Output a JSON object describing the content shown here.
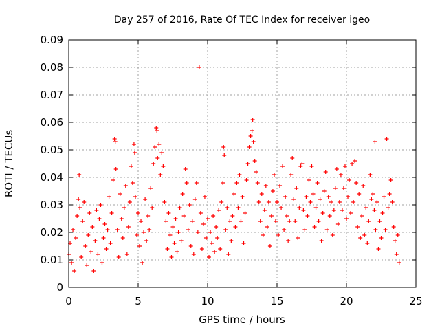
{
  "chart_data": {
    "type": "scatter",
    "title": "Day 257 of 2016, Rate Of TEC Index for receiver igeo",
    "xlabel": "GPS time / hours",
    "ylabel": "ROTI / TECUs",
    "xlim": [
      0,
      25
    ],
    "ylim": [
      0,
      0.09
    ],
    "xticks": [
      0,
      5,
      10,
      15,
      20,
      25
    ],
    "xtick_labels": [
      "0",
      "5",
      "10",
      "15",
      "20",
      "25"
    ],
    "yticks": [
      0,
      0.01,
      0.02,
      0.03,
      0.04,
      0.05,
      0.06,
      0.07,
      0.08,
      0.09
    ],
    "ytick_labels": [
      "0",
      "0.01",
      "0.02",
      "0.03",
      "0.04",
      "0.05",
      "0.06",
      "0.07",
      "0.08",
      "0.09"
    ],
    "grid": true,
    "marker": "+",
    "color": "#ff0000",
    "series": [
      {
        "name": "ROTI",
        "points": [
          [
            0.0,
            0.012
          ],
          [
            0.1,
            0.016
          ],
          [
            0.2,
            0.009
          ],
          [
            0.3,
            0.021
          ],
          [
            0.4,
            0.006
          ],
          [
            0.5,
            0.018
          ],
          [
            0.6,
            0.026
          ],
          [
            0.7,
            0.032
          ],
          [
            0.75,
            0.041
          ],
          [
            0.8,
            0.029
          ],
          [
            0.9,
            0.011
          ],
          [
            1.0,
            0.024
          ],
          [
            1.1,
            0.031
          ],
          [
            1.2,
            0.015
          ],
          [
            1.3,
            0.008
          ],
          [
            1.4,
            0.019
          ],
          [
            1.5,
            0.027
          ],
          [
            1.6,
            0.013
          ],
          [
            1.7,
            0.022
          ],
          [
            1.8,
            0.006
          ],
          [
            1.9,
            0.017
          ],
          [
            2.0,
            0.028
          ],
          [
            2.1,
            0.012
          ],
          [
            2.2,
            0.025
          ],
          [
            2.3,
            0.03
          ],
          [
            2.4,
            0.009
          ],
          [
            2.5,
            0.018
          ],
          [
            2.6,
            0.023
          ],
          [
            2.7,
            0.014
          ],
          [
            2.8,
            0.021
          ],
          [
            2.9,
            0.033
          ],
          [
            3.0,
            0.016
          ],
          [
            3.1,
            0.027
          ],
          [
            3.2,
            0.039
          ],
          [
            3.3,
            0.054
          ],
          [
            3.35,
            0.053
          ],
          [
            3.4,
            0.043
          ],
          [
            3.5,
            0.021
          ],
          [
            3.6,
            0.011
          ],
          [
            3.7,
            0.034
          ],
          [
            3.8,
            0.025
          ],
          [
            3.9,
            0.018
          ],
          [
            4.0,
            0.029
          ],
          [
            4.1,
            0.037
          ],
          [
            4.2,
            0.012
          ],
          [
            4.3,
            0.022
          ],
          [
            4.4,
            0.031
          ],
          [
            4.5,
            0.044
          ],
          [
            4.6,
            0.038
          ],
          [
            4.7,
            0.052
          ],
          [
            4.75,
            0.049
          ],
          [
            4.8,
            0.033
          ],
          [
            4.9,
            0.019
          ],
          [
            5.0,
            0.027
          ],
          [
            5.1,
            0.015
          ],
          [
            5.2,
            0.024
          ],
          [
            5.3,
            0.009
          ],
          [
            5.4,
            0.02
          ],
          [
            5.5,
            0.032
          ],
          [
            5.6,
            0.017
          ],
          [
            5.7,
            0.026
          ],
          [
            5.8,
            0.021
          ],
          [
            5.9,
            0.036
          ],
          [
            6.0,
            0.029
          ],
          [
            6.1,
            0.045
          ],
          [
            6.2,
            0.051
          ],
          [
            6.3,
            0.058
          ],
          [
            6.35,
            0.057
          ],
          [
            6.4,
            0.047
          ],
          [
            6.5,
            0.052
          ],
          [
            6.6,
            0.041
          ],
          [
            6.7,
            0.049
          ],
          [
            6.8,
            0.044
          ],
          [
            6.9,
            0.031
          ],
          [
            7.0,
            0.024
          ],
          [
            7.1,
            0.014
          ],
          [
            7.2,
            0.027
          ],
          [
            7.3,
            0.019
          ],
          [
            7.4,
            0.011
          ],
          [
            7.5,
            0.022
          ],
          [
            7.6,
            0.016
          ],
          [
            7.7,
            0.025
          ],
          [
            7.8,
            0.013
          ],
          [
            7.9,
            0.02
          ],
          [
            8.0,
            0.029
          ],
          [
            8.1,
            0.017
          ],
          [
            8.2,
            0.034
          ],
          [
            8.3,
            0.026
          ],
          [
            8.4,
            0.043
          ],
          [
            8.5,
            0.038
          ],
          [
            8.6,
            0.021
          ],
          [
            8.7,
            0.03
          ],
          [
            8.8,
            0.015
          ],
          [
            8.9,
            0.024
          ],
          [
            9.0,
            0.012
          ],
          [
            9.1,
            0.032
          ],
          [
            9.2,
            0.038
          ],
          [
            9.3,
            0.02
          ],
          [
            9.4,
            0.08
          ],
          [
            9.5,
            0.027
          ],
          [
            9.6,
            0.014
          ],
          [
            9.7,
            0.023
          ],
          [
            9.8,
            0.033
          ],
          [
            9.9,
            0.018
          ],
          [
            10.0,
            0.025
          ],
          [
            10.1,
            0.011
          ],
          [
            10.2,
            0.02
          ],
          [
            10.3,
            0.016
          ],
          [
            10.4,
            0.026
          ],
          [
            10.5,
            0.013
          ],
          [
            10.6,
            0.022
          ],
          [
            10.7,
            0.018
          ],
          [
            10.8,
            0.028
          ],
          [
            10.9,
            0.014
          ],
          [
            11.0,
            0.031
          ],
          [
            11.1,
            0.038
          ],
          [
            11.15,
            0.051
          ],
          [
            11.2,
            0.048
          ],
          [
            11.3,
            0.021
          ],
          [
            11.4,
            0.029
          ],
          [
            11.5,
            0.012
          ],
          [
            11.6,
            0.024
          ],
          [
            11.7,
            0.017
          ],
          [
            11.8,
            0.026
          ],
          [
            11.9,
            0.034
          ],
          [
            12.0,
            0.022
          ],
          [
            12.1,
            0.038
          ],
          [
            12.2,
            0.029
          ],
          [
            12.3,
            0.041
          ],
          [
            12.4,
            0.024
          ],
          [
            12.5,
            0.033
          ],
          [
            12.6,
            0.016
          ],
          [
            12.7,
            0.027
          ],
          [
            12.8,
            0.039
          ],
          [
            12.9,
            0.045
          ],
          [
            13.0,
            0.051
          ],
          [
            13.1,
            0.055
          ],
          [
            13.2,
            0.057
          ],
          [
            13.25,
            0.061
          ],
          [
            13.3,
            0.053
          ],
          [
            13.4,
            0.046
          ],
          [
            13.5,
            0.042
          ],
          [
            13.6,
            0.038
          ],
          [
            13.7,
            0.031
          ],
          [
            13.8,
            0.024
          ],
          [
            13.9,
            0.034
          ],
          [
            14.0,
            0.019
          ],
          [
            14.1,
            0.028
          ],
          [
            14.2,
            0.037
          ],
          [
            14.3,
            0.022
          ],
          [
            14.4,
            0.031
          ],
          [
            14.5,
            0.015
          ],
          [
            14.6,
            0.026
          ],
          [
            14.7,
            0.035
          ],
          [
            14.8,
            0.041
          ],
          [
            14.9,
            0.024
          ],
          [
            15.0,
            0.031
          ],
          [
            15.1,
            0.019
          ],
          [
            15.2,
            0.037
          ],
          [
            15.3,
            0.029
          ],
          [
            15.4,
            0.044
          ],
          [
            15.5,
            0.021
          ],
          [
            15.6,
            0.033
          ],
          [
            15.7,
            0.026
          ],
          [
            15.8,
            0.017
          ],
          [
            15.9,
            0.024
          ],
          [
            16.0,
            0.041
          ],
          [
            16.1,
            0.047
          ],
          [
            16.2,
            0.032
          ],
          [
            16.3,
            0.024
          ],
          [
            16.4,
            0.036
          ],
          [
            16.5,
            0.018
          ],
          [
            16.6,
            0.029
          ],
          [
            16.7,
            0.044
          ],
          [
            16.8,
            0.045
          ],
          [
            16.9,
            0.028
          ],
          [
            17.0,
            0.021
          ],
          [
            17.1,
            0.033
          ],
          [
            17.2,
            0.026
          ],
          [
            17.3,
            0.039
          ],
          [
            17.4,
            0.031
          ],
          [
            17.5,
            0.044
          ],
          [
            17.6,
            0.034
          ],
          [
            17.7,
            0.022
          ],
          [
            17.8,
            0.029
          ],
          [
            17.9,
            0.038
          ],
          [
            18.0,
            0.024
          ],
          [
            18.1,
            0.032
          ],
          [
            18.2,
            0.017
          ],
          [
            18.3,
            0.027
          ],
          [
            18.4,
            0.035
          ],
          [
            18.5,
            0.042
          ],
          [
            18.6,
            0.021
          ],
          [
            18.7,
            0.033
          ],
          [
            18.8,
            0.026
          ],
          [
            18.9,
            0.031
          ],
          [
            19.0,
            0.019
          ],
          [
            19.1,
            0.028
          ],
          [
            19.2,
            0.036
          ],
          [
            19.3,
            0.043
          ],
          [
            19.4,
            0.023
          ],
          [
            19.5,
            0.031
          ],
          [
            19.6,
            0.041
          ],
          [
            19.7,
            0.028
          ],
          [
            19.8,
            0.036
          ],
          [
            19.9,
            0.044
          ],
          [
            20.0,
            0.025
          ],
          [
            20.1,
            0.033
          ],
          [
            20.2,
            0.039
          ],
          [
            20.3,
            0.027
          ],
          [
            20.4,
            0.045
          ],
          [
            20.5,
            0.031
          ],
          [
            20.6,
            0.046
          ],
          [
            20.7,
            0.038
          ],
          [
            20.8,
            0.022
          ],
          [
            20.9,
            0.034
          ],
          [
            21.0,
            0.018
          ],
          [
            21.1,
            0.026
          ],
          [
            21.2,
            0.037
          ],
          [
            21.3,
            0.019
          ],
          [
            21.4,
            0.029
          ],
          [
            21.5,
            0.016
          ],
          [
            21.6,
            0.024
          ],
          [
            21.7,
            0.041
          ],
          [
            21.8,
            0.032
          ],
          [
            21.9,
            0.034
          ],
          [
            22.0,
            0.028
          ],
          [
            22.05,
            0.053
          ],
          [
            22.1,
            0.021
          ],
          [
            22.2,
            0.031
          ],
          [
            22.3,
            0.014
          ],
          [
            22.4,
            0.024
          ],
          [
            22.5,
            0.018
          ],
          [
            22.6,
            0.027
          ],
          [
            22.7,
            0.033
          ],
          [
            22.8,
            0.021
          ],
          [
            22.9,
            0.054
          ],
          [
            23.0,
            0.029
          ],
          [
            23.1,
            0.034
          ],
          [
            23.2,
            0.039
          ],
          [
            23.3,
            0.031
          ],
          [
            23.4,
            0.022
          ],
          [
            23.5,
            0.017
          ],
          [
            23.6,
            0.012
          ],
          [
            23.7,
            0.019
          ],
          [
            23.8,
            0.009
          ]
        ]
      }
    ]
  }
}
